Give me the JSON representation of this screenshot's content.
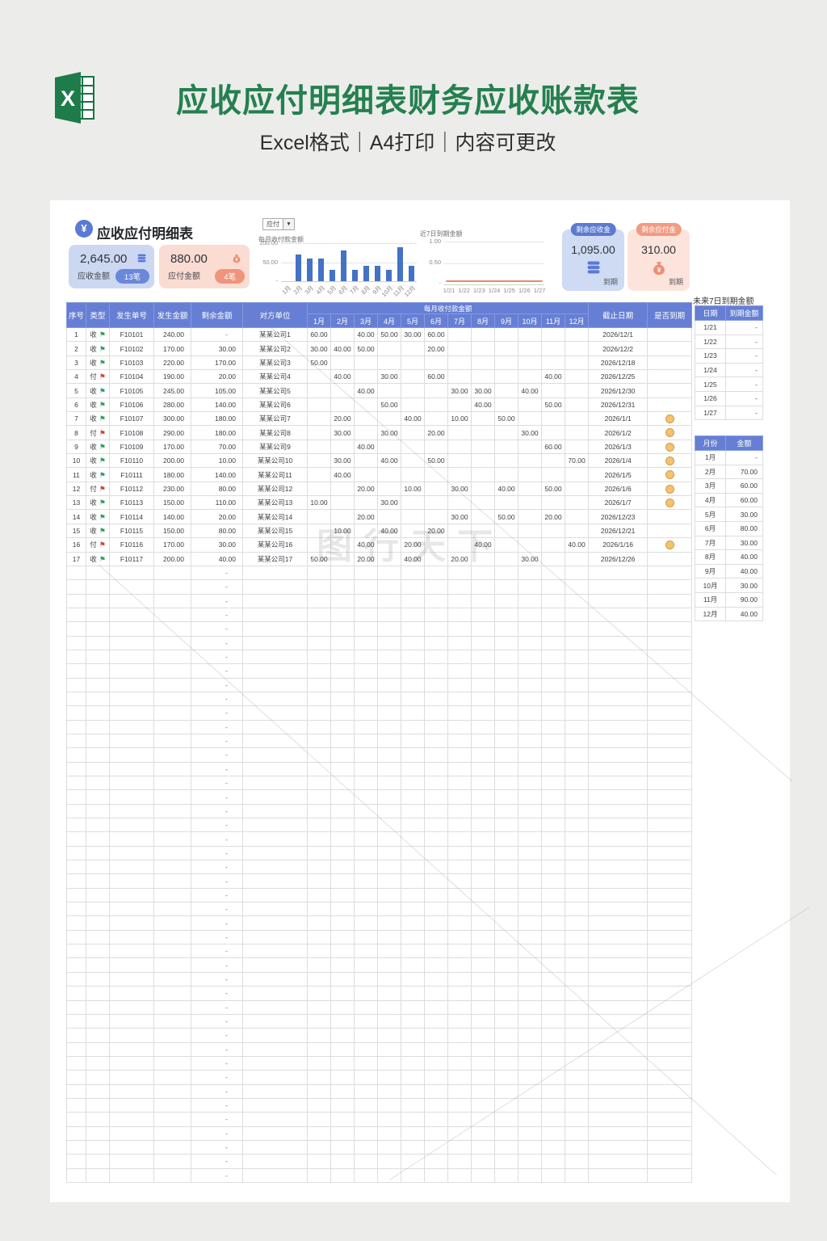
{
  "banner": {
    "logo_letter": "X",
    "title": "应收应付明细表财务应收账款表",
    "subtitle": "Excel格式｜A4打印｜内容可更改"
  },
  "sheet": {
    "title": "应收应付明细表",
    "currency_symbol": "¥",
    "summary": {
      "receivable": {
        "value": "2,645.00",
        "label": "应收金额",
        "count": "13笔"
      },
      "payable": {
        "value": "880.00",
        "label": "应付金额",
        "count": "4笔"
      }
    },
    "filter": {
      "value": "应付",
      "arrow": "▼"
    },
    "remaining": {
      "receivable": {
        "badge": "剩余应收金",
        "value": "1,095.00",
        "footer": "到期"
      },
      "payable": {
        "badge": "剩余应付金",
        "value": "310.00",
        "footer": "到期"
      }
    }
  },
  "chart_data": [
    {
      "type": "bar",
      "title": "每月收付款金额",
      "categories": [
        "1月",
        "2月",
        "3月",
        "4月",
        "5月",
        "6月",
        "7月",
        "8月",
        "9月",
        "10月",
        "11月",
        "12月"
      ],
      "values": [
        0,
        70,
        60,
        60,
        30,
        80,
        30,
        40,
        40,
        30,
        90,
        40
      ],
      "ylim": [
        0,
        100
      ],
      "ytick_labels": [
        "100.00",
        "50.00",
        "-"
      ],
      "bar_color": "#4472c4",
      "grid": true,
      "legend": "none"
    },
    {
      "type": "line",
      "title": "近7日到期金额",
      "categories": [
        "1/21",
        "1/22",
        "1/23",
        "1/24",
        "1/25",
        "1/26",
        "1/27"
      ],
      "values": [
        0,
        0,
        0,
        0,
        0,
        0,
        0
      ],
      "ylim": [
        0,
        1
      ],
      "ytick_labels": [
        "1.00",
        "0.50",
        "-"
      ],
      "line_color": "#e98970",
      "grid": true,
      "legend": "none"
    }
  ],
  "main_table": {
    "col_headers": [
      "序号",
      "类型",
      "发生单号",
      "发生金额",
      "剩余金额",
      "对方单位"
    ],
    "month_group_header": "每月收付款金额",
    "month_headers": [
      "1月",
      "2月",
      "3月",
      "4月",
      "5月",
      "6月",
      "7月",
      "8月",
      "9月",
      "10月",
      "11月",
      "12月"
    ],
    "tail_headers": [
      "截止日期",
      "是否到期"
    ],
    "rows": [
      {
        "seq": "1",
        "type": "收",
        "no": "F10101",
        "amount": "240.00",
        "remaining": "-",
        "company": "某某公司1",
        "months": [
          "60.00",
          "",
          "40.00",
          "50.00",
          "30.00",
          "60.00",
          "",
          "",
          "",
          "",
          "",
          ""
        ],
        "due_date": "2026/12/1",
        "due": false
      },
      {
        "seq": "2",
        "type": "收",
        "no": "F10102",
        "amount": "170.00",
        "remaining": "30.00",
        "company": "某某公司2",
        "months": [
          "30.00",
          "40.00",
          "50.00",
          "",
          "",
          "20.00",
          "",
          "",
          "",
          "",
          "",
          ""
        ],
        "due_date": "2026/12/2",
        "due": false
      },
      {
        "seq": "3",
        "type": "收",
        "no": "F10103",
        "amount": "220.00",
        "remaining": "170.00",
        "company": "某某公司3",
        "months": [
          "50.00",
          "",
          "",
          "",
          "",
          "",
          "",
          "",
          "",
          "",
          "",
          ""
        ],
        "due_date": "2026/12/18",
        "due": false
      },
      {
        "seq": "4",
        "type": "付",
        "no": "F10104",
        "amount": "190.00",
        "remaining": "20.00",
        "company": "某某公司4",
        "months": [
          "",
          "40.00",
          "",
          "30.00",
          "",
          "60.00",
          "",
          "",
          "",
          "",
          "40.00",
          ""
        ],
        "due_date": "2026/12/25",
        "due": false
      },
      {
        "seq": "5",
        "type": "收",
        "no": "F10105",
        "amount": "245.00",
        "remaining": "105.00",
        "company": "某某公司5",
        "months": [
          "",
          "",
          "40.00",
          "",
          "",
          "",
          "30.00",
          "30.00",
          "",
          "40.00",
          "",
          ""
        ],
        "due_date": "2026/12/30",
        "due": false
      },
      {
        "seq": "6",
        "type": "收",
        "no": "F10106",
        "amount": "280.00",
        "remaining": "140.00",
        "company": "某某公司6",
        "months": [
          "",
          "",
          "",
          "50.00",
          "",
          "",
          "",
          "40.00",
          "",
          "",
          "50.00",
          ""
        ],
        "due_date": "2026/12/31",
        "due": false
      },
      {
        "seq": "7",
        "type": "收",
        "no": "F10107",
        "amount": "300.00",
        "remaining": "180.00",
        "company": "某某公司7",
        "months": [
          "",
          "20.00",
          "",
          "",
          "40.00",
          "",
          "10.00",
          "",
          "50.00",
          "",
          "",
          ""
        ],
        "due_date": "2026/1/1",
        "due": true
      },
      {
        "seq": "8",
        "type": "付",
        "no": "F10108",
        "amount": "290.00",
        "remaining": "180.00",
        "company": "某某公司8",
        "months": [
          "",
          "30.00",
          "",
          "30.00",
          "",
          "20.00",
          "",
          "",
          "",
          "30.00",
          "",
          ""
        ],
        "due_date": "2026/1/2",
        "due": true
      },
      {
        "seq": "9",
        "type": "收",
        "no": "F10109",
        "amount": "170.00",
        "remaining": "70.00",
        "company": "某某公司9",
        "months": [
          "",
          "",
          "40.00",
          "",
          "",
          "",
          "",
          "",
          "",
          "",
          "60.00",
          ""
        ],
        "due_date": "2026/1/3",
        "due": true
      },
      {
        "seq": "10",
        "type": "收",
        "no": "F10110",
        "amount": "200.00",
        "remaining": "10.00",
        "company": "某某公司10",
        "months": [
          "",
          "30.00",
          "",
          "40.00",
          "",
          "50.00",
          "",
          "",
          "",
          "",
          "",
          "70.00"
        ],
        "due_date": "2026/1/4",
        "due": true
      },
      {
        "seq": "11",
        "type": "收",
        "no": "F10111",
        "amount": "180.00",
        "remaining": "140.00",
        "company": "某某公司11",
        "months": [
          "",
          "40.00",
          "",
          "",
          "",
          "",
          "",
          "",
          "",
          "",
          "",
          ""
        ],
        "due_date": "2026/1/5",
        "due": true
      },
      {
        "seq": "12",
        "type": "付",
        "no": "F10112",
        "amount": "230.00",
        "remaining": "80.00",
        "company": "某某公司12",
        "months": [
          "",
          "",
          "20.00",
          "",
          "10.00",
          "",
          "30.00",
          "",
          "40.00",
          "",
          "50.00",
          ""
        ],
        "due_date": "2026/1/6",
        "due": true
      },
      {
        "seq": "13",
        "type": "收",
        "no": "F10113",
        "amount": "150.00",
        "remaining": "110.00",
        "company": "某某公司13",
        "months": [
          "10.00",
          "",
          "",
          "30.00",
          "",
          "",
          "",
          "",
          "",
          "",
          "",
          ""
        ],
        "due_date": "2026/1/7",
        "due": true
      },
      {
        "seq": "14",
        "type": "收",
        "no": "F10114",
        "amount": "140.00",
        "remaining": "20.00",
        "company": "某某公司14",
        "months": [
          "",
          "",
          "20.00",
          "",
          "",
          "",
          "30.00",
          "",
          "50.00",
          "",
          "20.00",
          ""
        ],
        "due_date": "2026/12/23",
        "due": false
      },
      {
        "seq": "15",
        "type": "收",
        "no": "F10115",
        "amount": "150.00",
        "remaining": "80.00",
        "company": "某某公司15",
        "months": [
          "",
          "10.00",
          "",
          "40.00",
          "",
          "20.00",
          "",
          "",
          "",
          "",
          "",
          ""
        ],
        "due_date": "2026/12/21",
        "due": false
      },
      {
        "seq": "16",
        "type": "付",
        "no": "F10116",
        "amount": "170.00",
        "remaining": "30.00",
        "company": "某某公司16",
        "months": [
          "",
          "",
          "40.00",
          "",
          "20.00",
          "",
          "",
          "40.00",
          "",
          "",
          "",
          "40.00"
        ],
        "due_date": "2026/1/16",
        "due": true
      },
      {
        "seq": "17",
        "type": "收",
        "no": "F10117",
        "amount": "200.00",
        "remaining": "40.00",
        "company": "某某公司17",
        "months": [
          "50.00",
          "",
          "20.00",
          "",
          "40.00",
          "",
          "20.00",
          "",
          "",
          "30.00",
          "",
          ""
        ],
        "due_date": "2026/12/26",
        "due": false
      }
    ],
    "empty_row_count": 44,
    "empty_remaining": "-"
  },
  "right_panel": {
    "due7_title": "未来7日到期金额",
    "due7_headers": [
      "日期",
      "到期金额"
    ],
    "due7_rows": [
      [
        "1/21",
        "-"
      ],
      [
        "1/22",
        "-"
      ],
      [
        "1/23",
        "-"
      ],
      [
        "1/24",
        "-"
      ],
      [
        "1/25",
        "-"
      ],
      [
        "1/26",
        "-"
      ],
      [
        "1/27",
        "-"
      ]
    ],
    "monthly_headers": [
      "月份",
      "金额"
    ],
    "monthly_rows": [
      [
        "1月",
        "-"
      ],
      [
        "2月",
        "70.00"
      ],
      [
        "3月",
        "60.00"
      ],
      [
        "4月",
        "60.00"
      ],
      [
        "5月",
        "30.00"
      ],
      [
        "6月",
        "80.00"
      ],
      [
        "7月",
        "30.00"
      ],
      [
        "8月",
        "40.00"
      ],
      [
        "9月",
        "40.00"
      ],
      [
        "10月",
        "30.00"
      ],
      [
        "11月",
        "90.00"
      ],
      [
        "12月",
        "40.00"
      ]
    ]
  },
  "watermark": {
    "text": "图行天下"
  }
}
